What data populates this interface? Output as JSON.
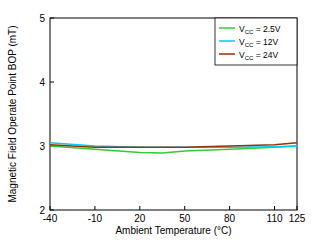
{
  "chart_data": {
    "type": "line",
    "x_label": "Ambient Temperature (°C)",
    "y_label": "Magnetic Field Operate Point BOP (mT)",
    "x": [
      -40,
      -10,
      20,
      35,
      50,
      80,
      110,
      125
    ],
    "series": [
      {
        "name": "VCC = 2.5V",
        "color": "#33cc33",
        "values": [
          3.0,
          2.95,
          2.9,
          2.89,
          2.92,
          2.95,
          2.98,
          3.0
        ]
      },
      {
        "name": "VCC = 12V",
        "color": "#00ccff",
        "values": [
          3.05,
          3.0,
          2.98,
          2.98,
          2.98,
          2.98,
          2.99,
          3.0
        ]
      },
      {
        "name": "VCC = 24V",
        "color": "#993300",
        "values": [
          3.02,
          2.98,
          2.98,
          2.98,
          2.98,
          3.0,
          3.02,
          3.05
        ]
      }
    ],
    "xlim": [
      -40,
      125
    ],
    "xticks": [
      -40,
      -10,
      20,
      50,
      80,
      110,
      125
    ],
    "ylim": [
      2,
      5
    ],
    "yticks": [
      2,
      3,
      4,
      5
    ],
    "grid": false,
    "legend": "top-right"
  }
}
